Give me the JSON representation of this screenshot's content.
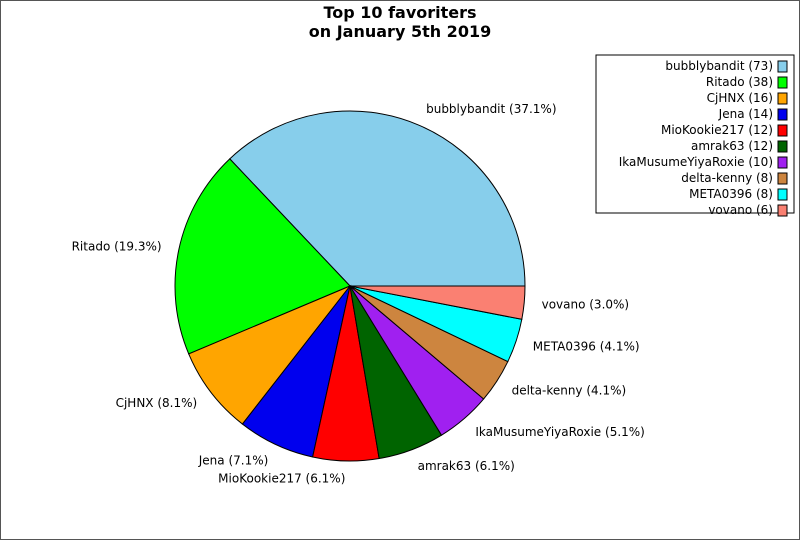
{
  "chart_data": {
    "type": "pie",
    "title": [
      "Top 10 favoriters",
      "on January 5th 2019"
    ],
    "start_angle_deg": 0,
    "direction": "counterclockwise",
    "legend_placement": "top-right",
    "slices": [
      {
        "name": "bubblybandit",
        "value": 73,
        "pct_label": "bubblybandit (37.1%)",
        "legend_label": "bubblybandit (73)",
        "color": "#87CEEB"
      },
      {
        "name": "Ritado",
        "value": 38,
        "pct_label": "Ritado (19.3%)",
        "legend_label": "Ritado (38)",
        "color": "#00FF00"
      },
      {
        "name": "CjHNX",
        "value": 16,
        "pct_label": "CjHNX (8.1%)",
        "legend_label": "CjHNX (16)",
        "color": "#FFA500"
      },
      {
        "name": "Jena",
        "value": 14,
        "pct_label": "Jena (7.1%)",
        "legend_label": "Jena (14)",
        "color": "#0000EE"
      },
      {
        "name": "MioKookie217",
        "value": 12,
        "pct_label": "MioKookie217 (6.1%)",
        "legend_label": "MioKookie217 (12)",
        "color": "#FF0000"
      },
      {
        "name": "amrak63",
        "value": 12,
        "pct_label": "amrak63 (6.1%)",
        "legend_label": "amrak63 (12)",
        "color": "#006400"
      },
      {
        "name": "IkaMusumeYiyaRoxie",
        "value": 10,
        "pct_label": "IkaMusumeYiyaRoxie (5.1%)",
        "legend_label": "IkaMusumeYiyaRoxie (10)",
        "color": "#A020F0"
      },
      {
        "name": "delta-kenny",
        "value": 8,
        "pct_label": "delta-kenny (4.1%)",
        "legend_label": "delta-kenny (8)",
        "color": "#CD853F"
      },
      {
        "name": "META0396",
        "value": 8,
        "pct_label": "META0396 (4.1%)",
        "legend_label": "META0396 (8)",
        "color": "#00FFFF"
      },
      {
        "name": "vovano",
        "value": 6,
        "pct_label": "vovano (3.0%)",
        "legend_label": "vovano (6)",
        "color": "#FA8072"
      }
    ]
  }
}
